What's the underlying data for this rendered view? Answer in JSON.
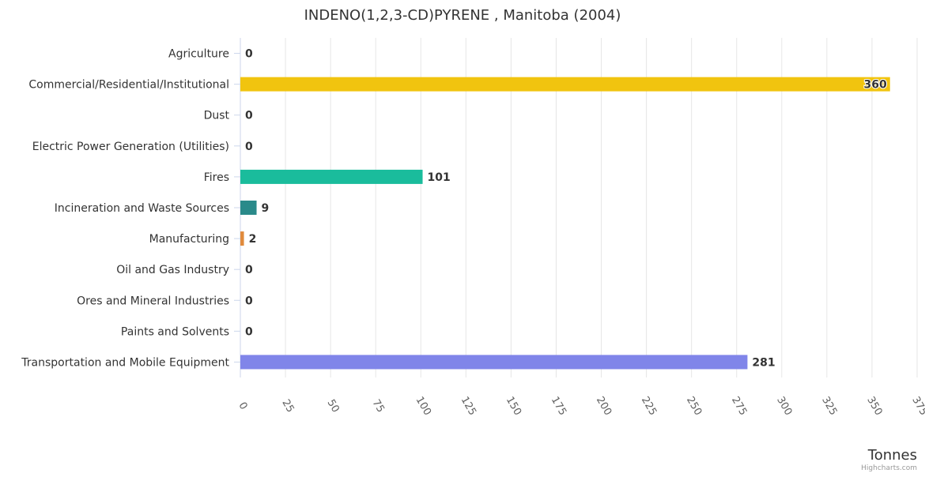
{
  "chart_data": {
    "type": "bar",
    "orientation": "horizontal",
    "title": "INDENO(1,2,3-CD)PYRENE , Manitoba (2004)",
    "xlabel": "Tonnes",
    "credit": "Highcharts.com",
    "categories": [
      "Agriculture",
      "Commercial/Residential/Institutional",
      "Dust",
      "Electric Power Generation (Utilities)",
      "Fires",
      "Incineration and Waste Sources",
      "Manufacturing",
      "Oil and Gas Industry",
      "Ores and Mineral Industries",
      "Paints and Solvents",
      "Transportation and Mobile Equipment"
    ],
    "values": [
      0,
      360,
      0,
      0,
      101,
      9,
      2,
      0,
      0,
      0,
      281
    ],
    "data_labels": [
      "0",
      "360",
      "0",
      "0",
      "101",
      "9",
      "2",
      "0",
      "0",
      "0",
      "281"
    ],
    "colors": [
      "#8bbc21",
      "#f1c40f",
      "#2f7ed8",
      "#910000",
      "#1abc9c",
      "#2a8a8a",
      "#e08a3c",
      "#77a1e5",
      "#c42525",
      "#a6c96a",
      "#8085e9"
    ],
    "xlim": [
      0,
      375
    ],
    "ticks": [
      0,
      25,
      50,
      75,
      100,
      125,
      150,
      175,
      200,
      225,
      250,
      275,
      300,
      325,
      350,
      375
    ],
    "grid": true
  }
}
